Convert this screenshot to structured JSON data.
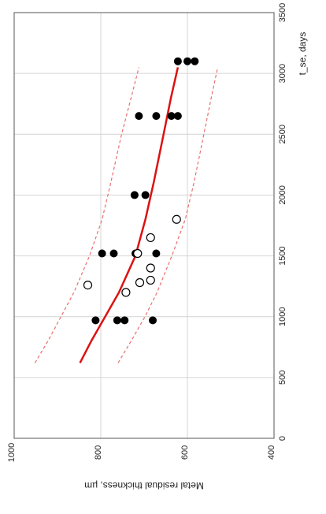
{
  "chart_data": {
    "type": "scatter",
    "orientation": "rotated-90-cw",
    "xlabel": "t_se, days",
    "ylabel": "Metal residual thickness, µm",
    "xlim": [
      0,
      3500
    ],
    "ylim": [
      400,
      1000
    ],
    "x_ticks": [
      0,
      500,
      1000,
      1500,
      2000,
      2500,
      3000,
      3500
    ],
    "y_ticks": [
      400,
      600,
      800,
      1000
    ],
    "grid": true,
    "series": [
      {
        "marker": "filled-circle",
        "color": "#000000",
        "points": [
          [
            970,
            812
          ],
          [
            970,
            762
          ],
          [
            970,
            745
          ],
          [
            970,
            680
          ],
          [
            1520,
            797
          ],
          [
            1520,
            770
          ],
          [
            1520,
            720
          ],
          [
            1520,
            672
          ],
          [
            2000,
            722
          ],
          [
            2000,
            697
          ],
          [
            2650,
            712
          ],
          [
            2650,
            672
          ],
          [
            2650,
            637
          ],
          [
            2650,
            622
          ],
          [
            3100,
            622
          ],
          [
            3100,
            600
          ],
          [
            3100,
            583
          ]
        ]
      },
      {
        "marker": "open-circle",
        "color": "#000000",
        "points": [
          [
            1260,
            830
          ],
          [
            1200,
            742
          ],
          [
            1280,
            710
          ],
          [
            1300,
            685
          ],
          [
            1400,
            685
          ],
          [
            1520,
            715
          ],
          [
            1650,
            685
          ],
          [
            1800,
            625
          ]
        ]
      }
    ],
    "lines": [
      {
        "style": "solid",
        "color": "#dd1111",
        "points": [
          [
            620,
            848
          ],
          [
            800,
            822
          ],
          [
            1000,
            790
          ],
          [
            1200,
            758
          ],
          [
            1500,
            720
          ],
          [
            1800,
            697
          ],
          [
            2100,
            678
          ],
          [
            2500,
            655
          ],
          [
            2800,
            638
          ],
          [
            3050,
            622
          ]
        ]
      },
      {
        "style": "dashed",
        "color": "#e87070",
        "points": [
          [
            620,
            952
          ],
          [
            800,
            922
          ],
          [
            1000,
            892
          ],
          [
            1200,
            862
          ],
          [
            1500,
            826
          ],
          [
            1800,
            797
          ],
          [
            2100,
            777
          ],
          [
            2500,
            752
          ],
          [
            2800,
            730
          ],
          [
            3050,
            712
          ]
        ]
      },
      {
        "style": "dashed",
        "color": "#e87070",
        "points": [
          [
            620,
            760
          ],
          [
            800,
            730
          ],
          [
            1000,
            698
          ],
          [
            1200,
            670
          ],
          [
            1500,
            636
          ],
          [
            1800,
            605
          ],
          [
            2100,
            585
          ],
          [
            2500,
            562
          ],
          [
            2800,
            545
          ],
          [
            3050,
            530
          ]
        ]
      }
    ]
  }
}
